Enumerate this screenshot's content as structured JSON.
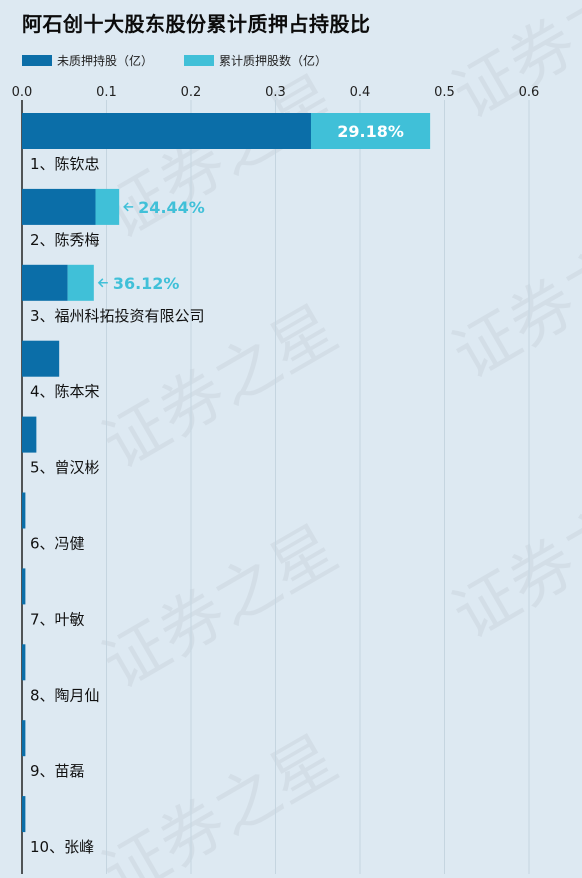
{
  "title": "阿石创十大股东股份累计质押占持股比",
  "legend": {
    "unpledged": "未质押持股（亿）",
    "pledged": "累计质押股数（亿）"
  },
  "colors": {
    "unpledged": "#0b6ea8",
    "pledged": "#40c0d8",
    "label_inside": "#ffffff",
    "label_outside": "#40c0d8",
    "grid": "#c5d5e0",
    "axis": "#222222"
  },
  "watermark": "证券之星",
  "chart_data": {
    "type": "bar",
    "orientation": "horizontal",
    "stacked": true,
    "title": "阿石创十大股东股份累计质押占持股比",
    "xlim": [
      0,
      0.6
    ],
    "xticks": [
      "0.0",
      "0.1",
      "0.2",
      "0.3",
      "0.4",
      "0.5",
      "0.6"
    ],
    "grid": true,
    "legend_position": "top-left",
    "categories": [
      "1、陈钦忠",
      "2、陈秀梅",
      "3、福州科拓投资有限公司",
      "4、陈本宋",
      "5、曾汉彬",
      "6、冯健",
      "7、叶敏",
      "8、陶月仙",
      "9、苗磊",
      "10、张峰"
    ],
    "series": [
      {
        "name": "未质押持股（亿）",
        "values": [
          0.342,
          0.087,
          0.054,
          0.044,
          0.017,
          0.004,
          0.004,
          0.004,
          0.004,
          0.004
        ]
      },
      {
        "name": "累计质押股数（亿）",
        "values": [
          0.141,
          0.028,
          0.031,
          0,
          0,
          0,
          0,
          0,
          0,
          0
        ]
      }
    ],
    "pledge_ratio_labels": [
      "29.18%",
      "24.44%",
      "36.12%",
      null,
      null,
      null,
      null,
      null,
      null,
      null
    ]
  }
}
